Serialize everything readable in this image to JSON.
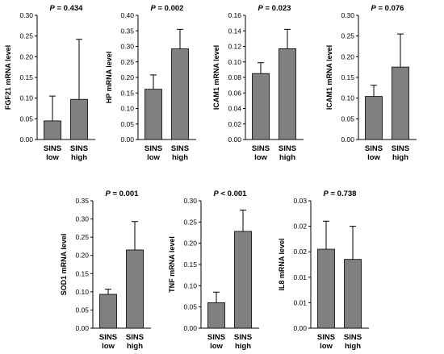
{
  "chart_data": [
    {
      "type": "bar",
      "categories": [
        "SINS low",
        "SINS high"
      ],
      "category_lines": [
        [
          "SINS",
          "low"
        ],
        [
          "SINS",
          "high"
        ]
      ],
      "values": [
        0.045,
        0.097
      ],
      "errors": [
        0.06,
        0.145
      ],
      "ylabel": "FGF21 mRNA level",
      "yticks": [
        "0.00",
        "0.05",
        "0.10",
        "0.15",
        "0.20",
        "0.25",
        "0.30"
      ],
      "ylim": [
        0,
        0.3
      ],
      "p_prefix": "P",
      "p_text": " = 0.434",
      "bar_color": "#808080",
      "grid": false
    },
    {
      "type": "bar",
      "categories": [
        "SINS low",
        "SINS high"
      ],
      "category_lines": [
        [
          "SINS",
          "low"
        ],
        [
          "SINS",
          "high"
        ]
      ],
      "values": [
        0.162,
        0.292
      ],
      "errors": [
        0.046,
        0.063
      ],
      "ylabel": "HP mRNA level",
      "yticks": [
        "0.00",
        "0.05",
        "0.10",
        "0.15",
        "0.20",
        "0.25",
        "0.30",
        "0.35",
        "0.40"
      ],
      "ylim": [
        0,
        0.4
      ],
      "p_prefix": "P",
      "p_text": " = 0.002",
      "bar_color": "#808080",
      "grid": false
    },
    {
      "type": "bar",
      "categories": [
        "SINS low",
        "SINS high"
      ],
      "category_lines": [
        [
          "SINS",
          "low"
        ],
        [
          "SINS",
          "high"
        ]
      ],
      "values": [
        0.085,
        0.117
      ],
      "errors": [
        0.014,
        0.025
      ],
      "ylabel": "ICAM1 mRNA level",
      "yticks": [
        "0.00",
        "0.02",
        "0.04",
        "0.06",
        "0.08",
        "0.10",
        "0.12",
        "0.14",
        "0.16"
      ],
      "ylim": [
        0,
        0.16
      ],
      "p_prefix": "P",
      "p_text": " = 0.023",
      "bar_color": "#808080",
      "grid": false
    },
    {
      "type": "bar",
      "categories": [
        "SINS low",
        "SINS high"
      ],
      "category_lines": [
        [
          "SINS",
          "low"
        ],
        [
          "SINS",
          "high"
        ]
      ],
      "values": [
        0.104,
        0.175
      ],
      "errors": [
        0.027,
        0.08
      ],
      "ylabel": "ICAM1 mRNA level",
      "yticks": [
        "0.00",
        "0.05",
        "0.10",
        "0.15",
        "0.20",
        "0.25",
        "0.30"
      ],
      "ylim": [
        0,
        0.3
      ],
      "p_prefix": "P",
      "p_text": " = 0.076",
      "bar_color": "#808080",
      "grid": false
    },
    {
      "type": "bar",
      "categories": [
        "SINS low",
        "SINS high"
      ],
      "category_lines": [
        [
          "SINS",
          "low"
        ],
        [
          "SINS",
          "high"
        ]
      ],
      "values": [
        0.093,
        0.215
      ],
      "errors": [
        0.014,
        0.078
      ],
      "ylabel": "SOD1 mRNA level",
      "yticks": [
        "0.00",
        "0.05",
        "0.10",
        "0.15",
        "0.20",
        "0.25",
        "0.30",
        "0.35"
      ],
      "ylim": [
        0,
        0.35
      ],
      "p_prefix": "P",
      "p_text": " = 0.001",
      "bar_color": "#808080",
      "grid": false
    },
    {
      "type": "bar",
      "categories": [
        "SINS low",
        "SINS high"
      ],
      "category_lines": [
        [
          "SINS",
          "low"
        ],
        [
          "SINS",
          "high"
        ]
      ],
      "values": [
        0.06,
        0.228
      ],
      "errors": [
        0.025,
        0.05
      ],
      "ylabel": "TNF mRNA level",
      "yticks": [
        "0.00",
        "0.05",
        "0.10",
        "0.15",
        "0.20",
        "0.25",
        "0.30"
      ],
      "ylim": [
        0,
        0.3
      ],
      "p_prefix": "P",
      "p_text": " < 0.001",
      "bar_color": "#808080",
      "grid": false
    },
    {
      "type": "bar",
      "categories": [
        "SINS low",
        "SINS high"
      ],
      "category_lines": [
        [
          "SINS",
          "low"
        ],
        [
          "SINS",
          "high"
        ]
      ],
      "values": [
        0.0155,
        0.0135
      ],
      "errors": [
        0.0055,
        0.0065
      ],
      "ylabel": "IL8 mRNA level",
      "yticks": [
        "0.00",
        "0.01",
        "0.01",
        "0.02",
        "0.02",
        "0.03"
      ],
      "ylim": [
        0,
        0.025
      ],
      "p_prefix": "P",
      "p_text": " = 0.738",
      "bar_color": "#808080",
      "grid": false
    }
  ]
}
